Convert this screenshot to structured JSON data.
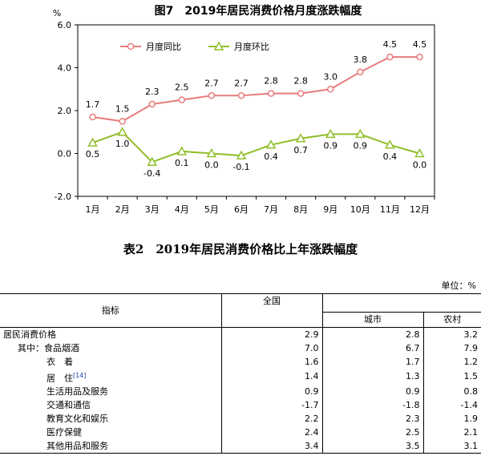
{
  "chart_data": {
    "type": "line",
    "title": "图7　2019年居民消费价格月度涨跌幅度",
    "ylabel": "%",
    "categories": [
      "1月",
      "2月",
      "3月",
      "4月",
      "5月",
      "6月",
      "7月",
      "8月",
      "9月",
      "10月",
      "11月",
      "12月"
    ],
    "ylim": [
      -2.0,
      6.0
    ],
    "yticks": [
      "6.0",
      "4.0",
      "2.0",
      "0.0",
      "-2.0"
    ],
    "legend_position": "top-left",
    "series": [
      {
        "name": "月度同比",
        "color": "#e87c7c",
        "values": [
          1.7,
          1.5,
          2.3,
          2.5,
          2.7,
          2.7,
          2.8,
          2.8,
          3.0,
          3.8,
          4.5,
          4.5
        ],
        "labels": [
          "1.7",
          "1.5",
          "2.3",
          "2.5",
          "2.7",
          "2.7",
          "2.8",
          "2.8",
          "3.0",
          "3.8",
          "4.5",
          "4.5"
        ]
      },
      {
        "name": "月度环比",
        "color": "#8fbf2a",
        "values": [
          0.5,
          1.0,
          -0.4,
          0.1,
          0.0,
          -0.1,
          0.4,
          0.7,
          0.9,
          0.9,
          0.4,
          0.0
        ],
        "labels": [
          "0.5",
          "1.0",
          "-0.4",
          "0.1",
          "0.0",
          "-0.1",
          "0.4",
          "0.7",
          "0.9",
          "0.9",
          "0.4",
          "0.0"
        ]
      }
    ]
  },
  "table": {
    "title": "表2　2019年居民消费价格比上年涨跌幅度",
    "unit": "单位：%",
    "headers": {
      "indicator": "指标",
      "national": "全国",
      "urban": "城市",
      "rural": "农村"
    },
    "rows": [
      {
        "name": "居民消费价格",
        "national": "2.9",
        "urban": "2.8",
        "rural": "3.2"
      },
      {
        "name": "其中：食品烟酒",
        "national": "7.0",
        "urban": "6.7",
        "rural": "7.9"
      },
      {
        "name": "衣　着",
        "national": "1.6",
        "urban": "1.7",
        "rural": "1.2"
      },
      {
        "name": "居　住",
        "note": "[14]",
        "national": "1.4",
        "urban": "1.3",
        "rural": "1.5"
      },
      {
        "name": "生活用品及服务",
        "national": "0.9",
        "urban": "0.9",
        "rural": "0.8"
      },
      {
        "name": "交通和通信",
        "national": "-1.7",
        "urban": "-1.8",
        "rural": "-1.4"
      },
      {
        "name": "教育文化和娱乐",
        "national": "2.2",
        "urban": "2.3",
        "rural": "1.9"
      },
      {
        "name": "医疗保健",
        "national": "2.4",
        "urban": "2.5",
        "rural": "2.1"
      },
      {
        "name": "其他用品和服务",
        "national": "3.4",
        "urban": "3.5",
        "rural": "3.1"
      }
    ]
  }
}
